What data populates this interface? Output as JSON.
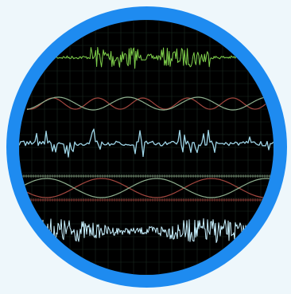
{
  "app_icon": {
    "name": "waveform-oscilloscope-icon",
    "colors": {
      "ring": "#1e8bf0",
      "background": "#eef7fb",
      "screen": "#000000",
      "grid": "#1b2b20",
      "trace_green": "#7fd04b",
      "trace_red": "#a3473f",
      "trace_sage": "#8fb08f",
      "trace_cyan": "#9ed4e6",
      "trace_pale_cyan": "#c8f1ff"
    },
    "traces": [
      {
        "id": "burst-noise",
        "color": "trace_green",
        "style": "noise-bursts"
      },
      {
        "id": "dual-sine",
        "color": "trace_red",
        "style": "two-sines"
      },
      {
        "id": "spiky-signal",
        "color": "trace_cyan",
        "style": "spikes"
      },
      {
        "id": "slow-sines-with-ticks",
        "color": "trace_sage",
        "style": "slow-sines"
      },
      {
        "id": "dense-noise",
        "color": "trace_pale_cyan",
        "style": "noise-dense"
      }
    ]
  }
}
